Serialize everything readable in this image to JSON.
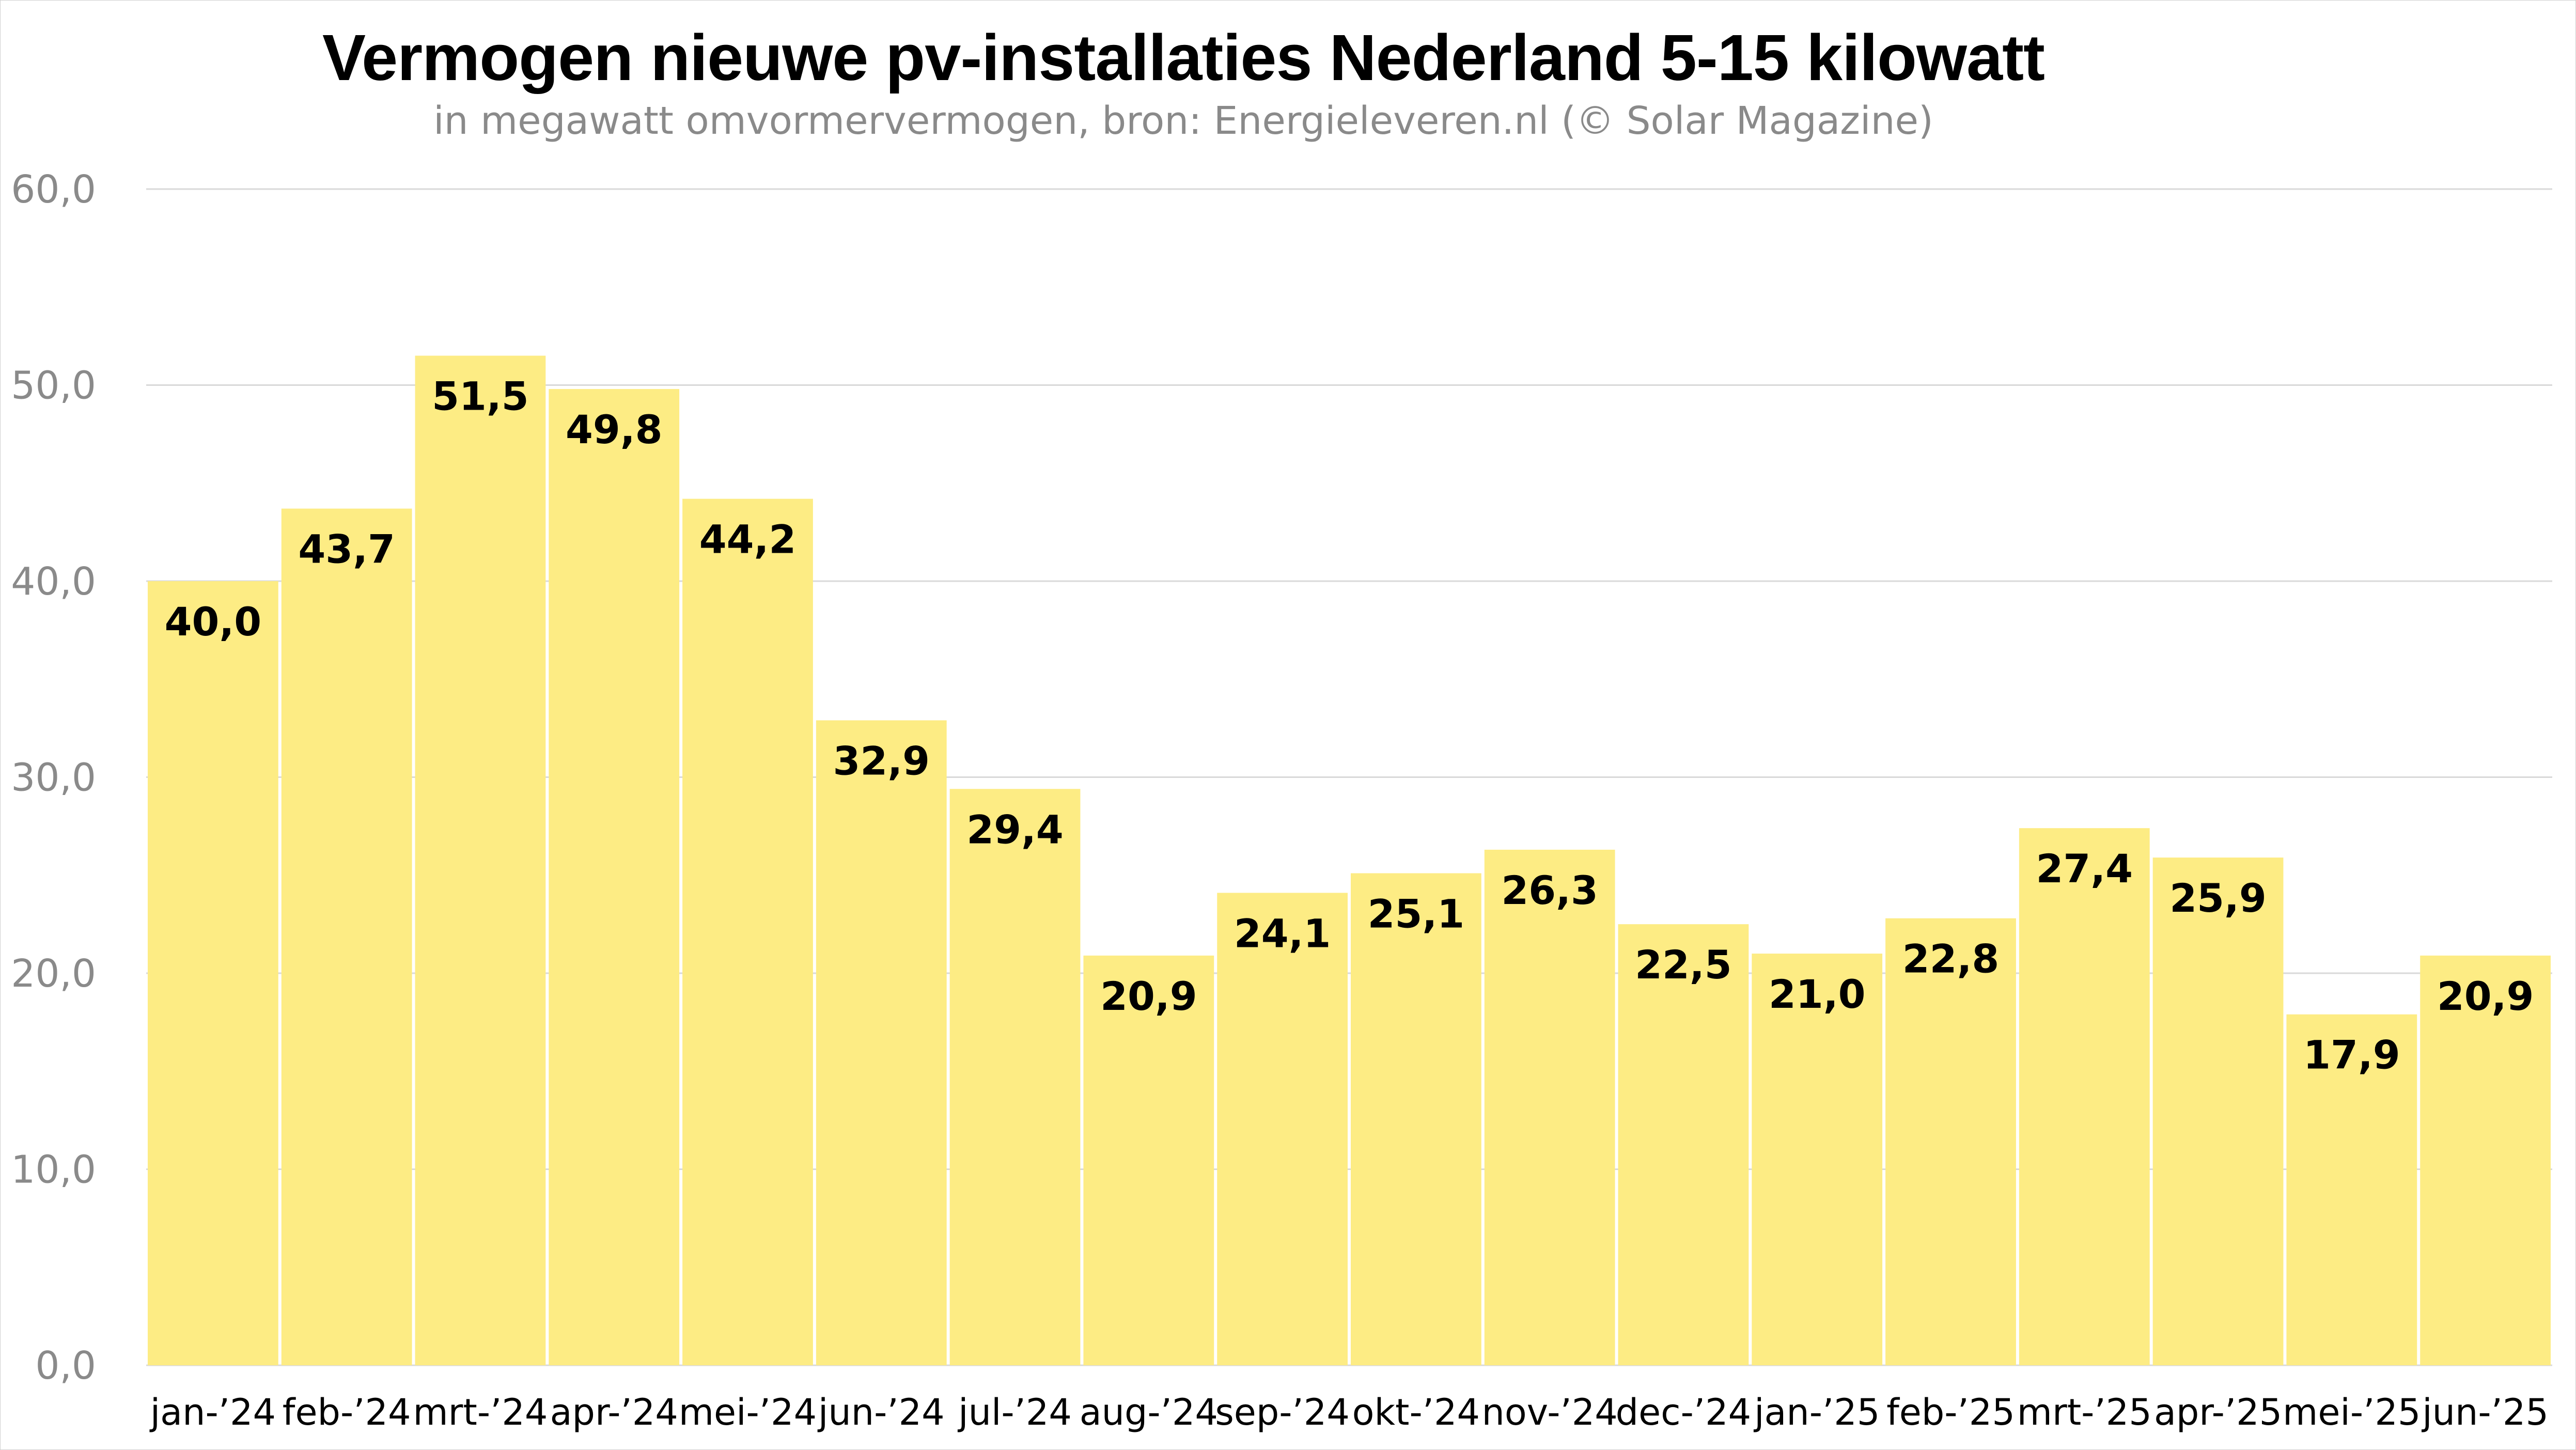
{
  "chart_data": {
    "type": "bar",
    "title": "Vermogen nieuwe pv-installaties Nederland 5-15 kilowatt",
    "subtitle": "in megawatt omvormervermogen, bron: Energieleveren.nl (© Solar Magazine)",
    "categories": [
      "jan-’24",
      "feb-’24",
      "mrt-’24",
      "apr-’24",
      "mei-’24",
      "jun-’24",
      "jul-’24",
      "aug-’24",
      "sep-’24",
      "okt-’24",
      "nov-’24",
      "dec-’24",
      "jan-’25",
      "feb-’25",
      "mrt-’25",
      "apr-’25",
      "mei-’25",
      "jun-’25"
    ],
    "values": [
      40.0,
      43.7,
      51.5,
      49.8,
      44.2,
      32.9,
      29.4,
      20.9,
      24.1,
      25.1,
      26.3,
      22.5,
      21.0,
      22.8,
      27.4,
      25.9,
      17.9,
      20.9
    ],
    "data_labels": [
      "40,0",
      "43,7",
      "51,5",
      "49,8",
      "44,2",
      "32,9",
      "29,4",
      "20,9",
      "24,1",
      "25,1",
      "26,3",
      "22,5",
      "21,0",
      "22,8",
      "27,4",
      "25,9",
      "17,9",
      "20,9"
    ],
    "y_ticks": [
      "0,0",
      "10,0",
      "20,0",
      "30,0",
      "40,0",
      "50,0",
      "60,0"
    ],
    "ylim": [
      0,
      60
    ],
    "xlabel": "",
    "ylabel": "",
    "grid": true,
    "legend": "none",
    "bar_color": "#fdec84",
    "gridline_color": "#d9d9d9"
  }
}
